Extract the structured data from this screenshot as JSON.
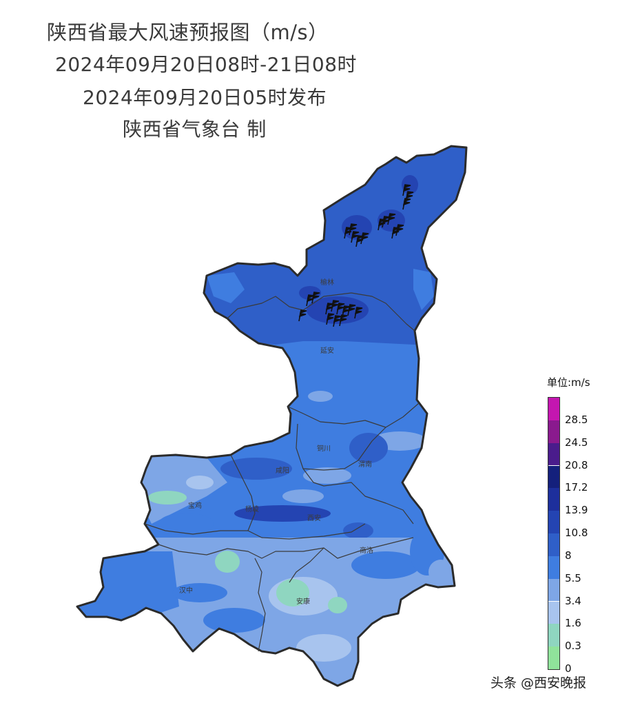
{
  "title": {
    "line1": "陕西省最大风速预报图（m/s）",
    "line2": "2024年09月20日08时-21日08时",
    "line3": "2024年09月20日05时发布",
    "line4": "陕西省气象台 制"
  },
  "map": {
    "cities": [
      {
        "id": "yulin",
        "name": "榆林"
      },
      {
        "id": "yanan",
        "name": "延安"
      },
      {
        "id": "tongchuan",
        "name": "铜川"
      },
      {
        "id": "weinan",
        "name": "渭南"
      },
      {
        "id": "xianyang",
        "name": "咸阳"
      },
      {
        "id": "baoji",
        "name": "宝鸡"
      },
      {
        "id": "yangling",
        "name": "杨凌"
      },
      {
        "id": "xian",
        "name": "西安"
      },
      {
        "id": "shangluo",
        "name": "商洛"
      },
      {
        "id": "hanzhong",
        "name": "汉中"
      },
      {
        "id": "ankang",
        "name": "安康"
      }
    ],
    "wind_barb_icon": "wind-barb-icon"
  },
  "legend": {
    "title": "单位:m/s",
    "levels": [
      {
        "label": "0",
        "color": "#90e39b"
      },
      {
        "label": "0.3",
        "color": "#8fd6c0"
      },
      {
        "label": "1.6",
        "color": "#a8c4ee"
      },
      {
        "label": "3.4",
        "color": "#7ea6e6"
      },
      {
        "label": "5.5",
        "color": "#3f7de0"
      },
      {
        "label": "8",
        "color": "#2f5fc8"
      },
      {
        "label": "10.8",
        "color": "#2444b2"
      },
      {
        "label": "13.9",
        "color": "#1d2f9c"
      },
      {
        "label": "17.2",
        "color": "#14207c"
      },
      {
        "label": "20.8",
        "color": "#4a1c8c"
      },
      {
        "label": "24.5",
        "color": "#8a1a8e"
      },
      {
        "label": "28.5",
        "color": "#c416b0"
      }
    ]
  },
  "watermark": "头条 @西安晚报"
}
